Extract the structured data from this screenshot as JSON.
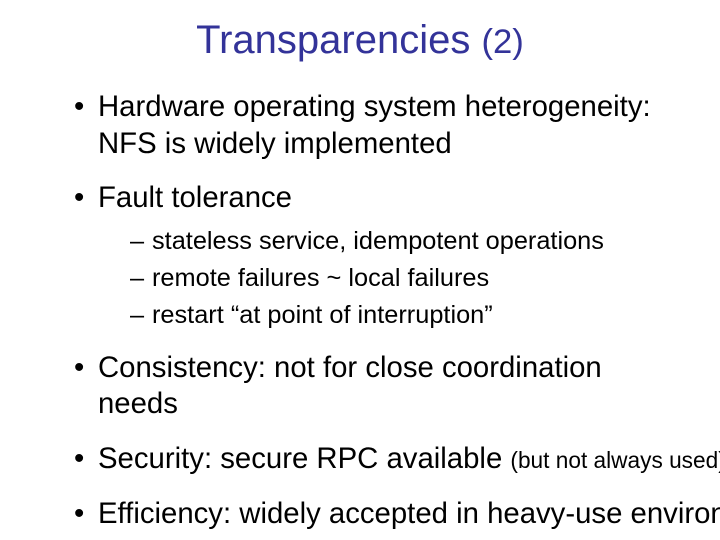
{
  "slide": {
    "background_color": "#ffffff",
    "title": {
      "text_a": "Transparencies ",
      "text_b": "(2)",
      "color": "#333399",
      "fontsize_pt": 30,
      "fontsize_b_pt": 26
    },
    "body": {
      "top_fontsize_pt": 22,
      "sub_fontsize_pt": 19,
      "text_color": "#000000",
      "bullets": [
        {
          "lines": [
            "Hardware operating system heterogeneity:",
            "NFS is widely implemented"
          ]
        },
        {
          "lines": [
            "Fault tolerance"
          ],
          "sub": [
            "stateless service, idempotent operations",
            "remote failures ~ local failures",
            "restart “at point of interruption”"
          ]
        },
        {
          "lines": [
            "Consistency: not for close coordination needs"
          ]
        },
        {
          "text_main": "Security: secure RPC available ",
          "text_small": "(but not always used)",
          "small_fontsize_pt": 17
        },
        {
          "lines": [
            "Efficiency: widely accepted in heavy-use environments"
          ]
        }
      ]
    }
  }
}
